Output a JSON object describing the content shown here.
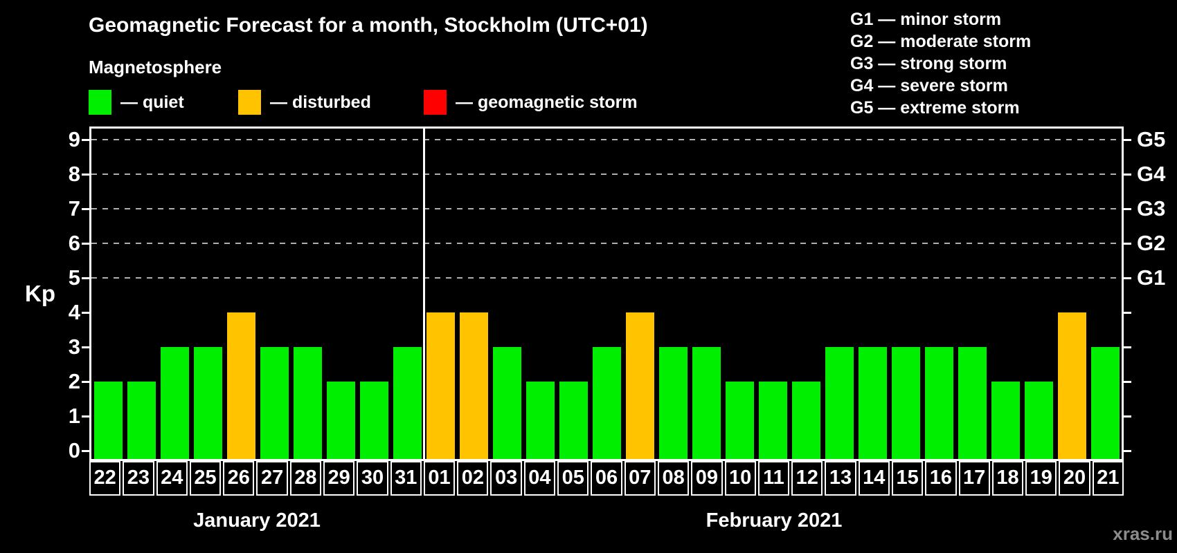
{
  "header": {
    "title": "Geomagnetic Forecast for a month, Stockholm (UTC+01)",
    "subtitle": "Magnetosphere"
  },
  "legend": {
    "items": [
      {
        "key": "quiet",
        "label": "— quiet",
        "color": "#00ee00"
      },
      {
        "key": "disturbed",
        "label": "— disturbed",
        "color": "#ffc300"
      },
      {
        "key": "storm",
        "label": "— geomagnetic storm",
        "color": "#ff0000"
      }
    ]
  },
  "g_legend": {
    "items": [
      {
        "text": "G1 — minor storm"
      },
      {
        "text": "G2 — moderate storm"
      },
      {
        "text": "G3 — strong storm"
      },
      {
        "text": "G4 — severe storm"
      },
      {
        "text": "G5 — extreme storm"
      }
    ]
  },
  "chart_data": {
    "type": "bar",
    "title": "Geomagnetic Forecast for a month, Stockholm (UTC+01)",
    "ylabel": "Kp",
    "ylim": [
      0,
      9.4
    ],
    "yticks": [
      0,
      1,
      2,
      3,
      4,
      5,
      6,
      7,
      8,
      9
    ],
    "grid": "dashed horizontal lines at Kp 5-9",
    "grid_lines_kp": [
      5,
      6,
      7,
      8,
      9
    ],
    "right_axis": [
      {
        "label": "G1",
        "kp": 5
      },
      {
        "label": "G2",
        "kp": 6
      },
      {
        "label": "G3",
        "kp": 7
      },
      {
        "label": "G4",
        "kp": 8
      },
      {
        "label": "G5",
        "kp": 9
      }
    ],
    "legend_position": "top-left",
    "months": [
      {
        "name": "January 2021",
        "days": 10
      },
      {
        "name": "February 2021",
        "days": 21
      }
    ],
    "categories": [
      "22",
      "23",
      "24",
      "25",
      "26",
      "27",
      "28",
      "29",
      "30",
      "31",
      "01",
      "02",
      "03",
      "04",
      "05",
      "06",
      "07",
      "08",
      "09",
      "10",
      "11",
      "12",
      "13",
      "14",
      "15",
      "16",
      "17",
      "18",
      "19",
      "20",
      "21"
    ],
    "values": [
      2,
      2,
      3,
      3,
      4,
      3,
      3,
      2,
      2,
      3,
      4,
      4,
      3,
      2,
      2,
      3,
      4,
      3,
      3,
      2,
      2,
      2,
      3,
      3,
      3,
      3,
      3,
      2,
      2,
      4,
      3
    ],
    "status": [
      "quiet",
      "quiet",
      "quiet",
      "quiet",
      "disturbed",
      "quiet",
      "quiet",
      "quiet",
      "quiet",
      "quiet",
      "disturbed",
      "disturbed",
      "quiet",
      "quiet",
      "quiet",
      "quiet",
      "disturbed",
      "quiet",
      "quiet",
      "quiet",
      "quiet",
      "quiet",
      "quiet",
      "quiet",
      "quiet",
      "quiet",
      "quiet",
      "quiet",
      "quiet",
      "disturbed",
      "quiet"
    ]
  },
  "colors": {
    "quiet": "#00ee00",
    "disturbed": "#ffc300",
    "storm": "#ff0000",
    "gridline": "#b0b0b0",
    "axis": "#ffffff",
    "watermark": "#8c8c8c",
    "background": "#000000"
  },
  "footer": {
    "watermark": "xras.ru"
  }
}
